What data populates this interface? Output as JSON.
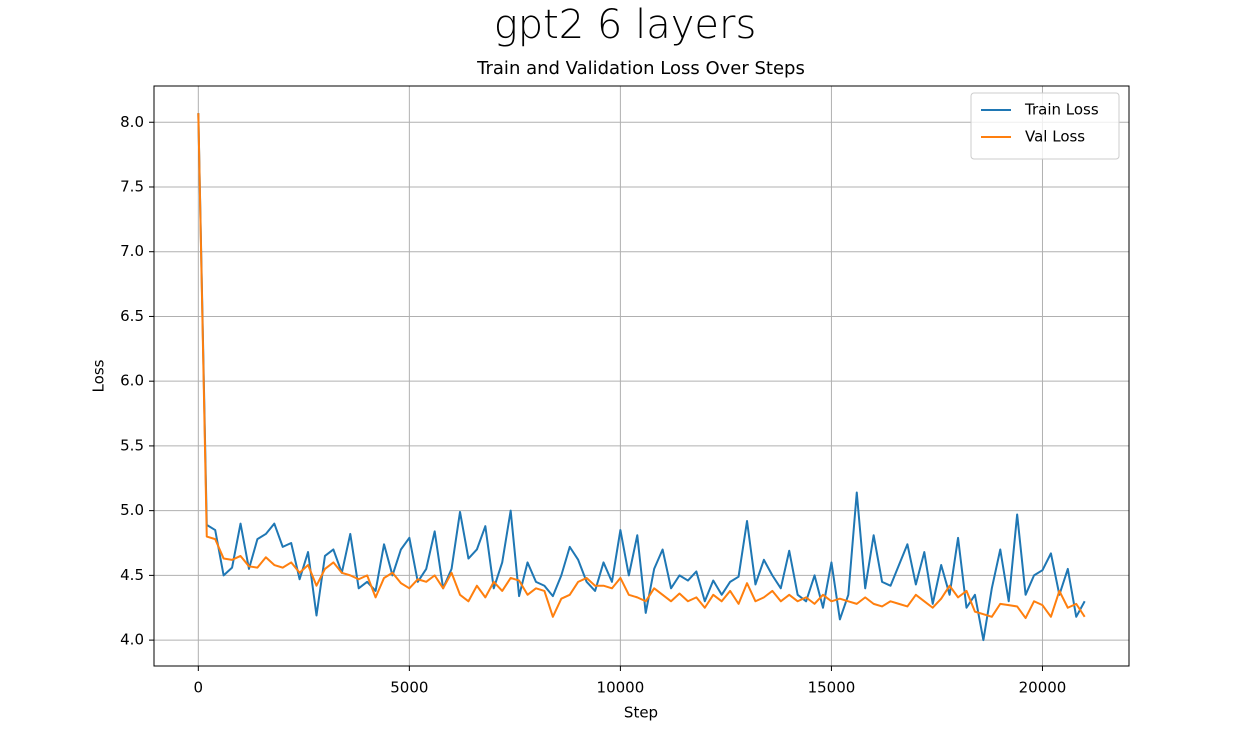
{
  "chart_data": {
    "type": "line",
    "suptitle": "gpt2 6 layers",
    "title": "Train and Validation Loss Over Steps",
    "xlabel": "Step",
    "ylabel": "Loss",
    "x": [
      0,
      200,
      400,
      600,
      800,
      1000,
      1200,
      1400,
      1600,
      1800,
      2000,
      2200,
      2400,
      2600,
      2800,
      3000,
      3200,
      3400,
      3600,
      3800,
      4000,
      4200,
      4400,
      4600,
      4800,
      5000,
      5200,
      5400,
      5600,
      5800,
      6000,
      6200,
      6400,
      6600,
      6800,
      7000,
      7200,
      7400,
      7600,
      7800,
      8000,
      8200,
      8400,
      8600,
      8800,
      9000,
      9200,
      9400,
      9600,
      9800,
      10000,
      10200,
      10400,
      10600,
      10800,
      11000,
      11200,
      11400,
      11600,
      11800,
      12000,
      12200,
      12400,
      12600,
      12800,
      13000,
      13200,
      13400,
      13600,
      13800,
      14000,
      14200,
      14400,
      14600,
      14800,
      15000,
      15200,
      15400,
      15600,
      15800,
      16000,
      16200,
      16400,
      16600,
      16800,
      17000,
      17200,
      17400,
      17600,
      17800,
      18000,
      18200,
      18400,
      18600,
      18800,
      19000,
      19200,
      19400,
      19600,
      19800,
      20000,
      20200,
      20400,
      20600,
      20800,
      21000
    ],
    "series": [
      {
        "name": "Train Loss",
        "color": "#1f77b4",
        "values": [
          8.07,
          4.89,
          4.85,
          4.5,
          4.56,
          4.9,
          4.55,
          4.78,
          4.82,
          4.9,
          4.72,
          4.75,
          4.47,
          4.68,
          4.19,
          4.65,
          4.7,
          4.52,
          4.82,
          4.4,
          4.45,
          4.38,
          4.74,
          4.5,
          4.7,
          4.79,
          4.45,
          4.55,
          4.84,
          4.4,
          4.55,
          4.99,
          4.63,
          4.7,
          4.88,
          4.4,
          4.6,
          5.0,
          4.34,
          4.6,
          4.45,
          4.42,
          4.34,
          4.5,
          4.72,
          4.62,
          4.45,
          4.38,
          4.6,
          4.45,
          4.85,
          4.5,
          4.81,
          4.21,
          4.55,
          4.7,
          4.4,
          4.5,
          4.46,
          4.53,
          4.3,
          4.46,
          4.35,
          4.45,
          4.49,
          4.92,
          4.43,
          4.62,
          4.5,
          4.4,
          4.69,
          4.35,
          4.3,
          4.5,
          4.25,
          4.6,
          4.16,
          4.35,
          5.14,
          4.4,
          4.81,
          4.45,
          4.42,
          4.58,
          4.74,
          4.43,
          4.68,
          4.28,
          4.58,
          4.35,
          4.79,
          4.25,
          4.35,
          4.0,
          4.4,
          4.7,
          4.3,
          4.97,
          4.35,
          4.5,
          4.54,
          4.67,
          4.35,
          4.55,
          4.18,
          4.3
        ]
      },
      {
        "name": "Val Loss",
        "color": "#ff7f0e",
        "values": [
          8.07,
          4.8,
          4.78,
          4.63,
          4.62,
          4.65,
          4.57,
          4.56,
          4.64,
          4.58,
          4.56,
          4.6,
          4.52,
          4.58,
          4.42,
          4.55,
          4.6,
          4.52,
          4.5,
          4.47,
          4.5,
          4.33,
          4.48,
          4.52,
          4.44,
          4.4,
          4.47,
          4.45,
          4.5,
          4.4,
          4.52,
          4.35,
          4.3,
          4.42,
          4.33,
          4.45,
          4.38,
          4.48,
          4.46,
          4.35,
          4.4,
          4.38,
          4.18,
          4.32,
          4.35,
          4.45,
          4.48,
          4.42,
          4.42,
          4.4,
          4.48,
          4.35,
          4.33,
          4.3,
          4.4,
          4.35,
          4.3,
          4.36,
          4.3,
          4.33,
          4.25,
          4.35,
          4.3,
          4.38,
          4.28,
          4.44,
          4.3,
          4.33,
          4.38,
          4.3,
          4.35,
          4.3,
          4.33,
          4.28,
          4.35,
          4.3,
          4.32,
          4.3,
          4.28,
          4.33,
          4.28,
          4.26,
          4.3,
          4.28,
          4.26,
          4.35,
          4.3,
          4.25,
          4.32,
          4.42,
          4.33,
          4.38,
          4.22,
          4.2,
          4.18,
          4.28,
          4.27,
          4.26,
          4.17,
          4.3,
          4.27,
          4.18,
          4.38,
          4.25,
          4.28,
          4.18
        ]
      }
    ],
    "xlim": [
      -1050,
      22050
    ],
    "xticks": [
      0,
      5000,
      10000,
      15000,
      20000
    ],
    "ylim": [
      3.8,
      8.28
    ],
    "yticks": [
      {
        "value": 4,
        "label": "4.0"
      },
      4.5,
      {
        "value": 5,
        "label": "5.0"
      },
      5.5,
      {
        "value": 6,
        "label": "6.0"
      },
      6.5,
      {
        "value": 7,
        "label": "7.0"
      },
      7.5,
      {
        "value": 8,
        "label": "8.0"
      }
    ],
    "grid": true,
    "legend": "upper right"
  }
}
